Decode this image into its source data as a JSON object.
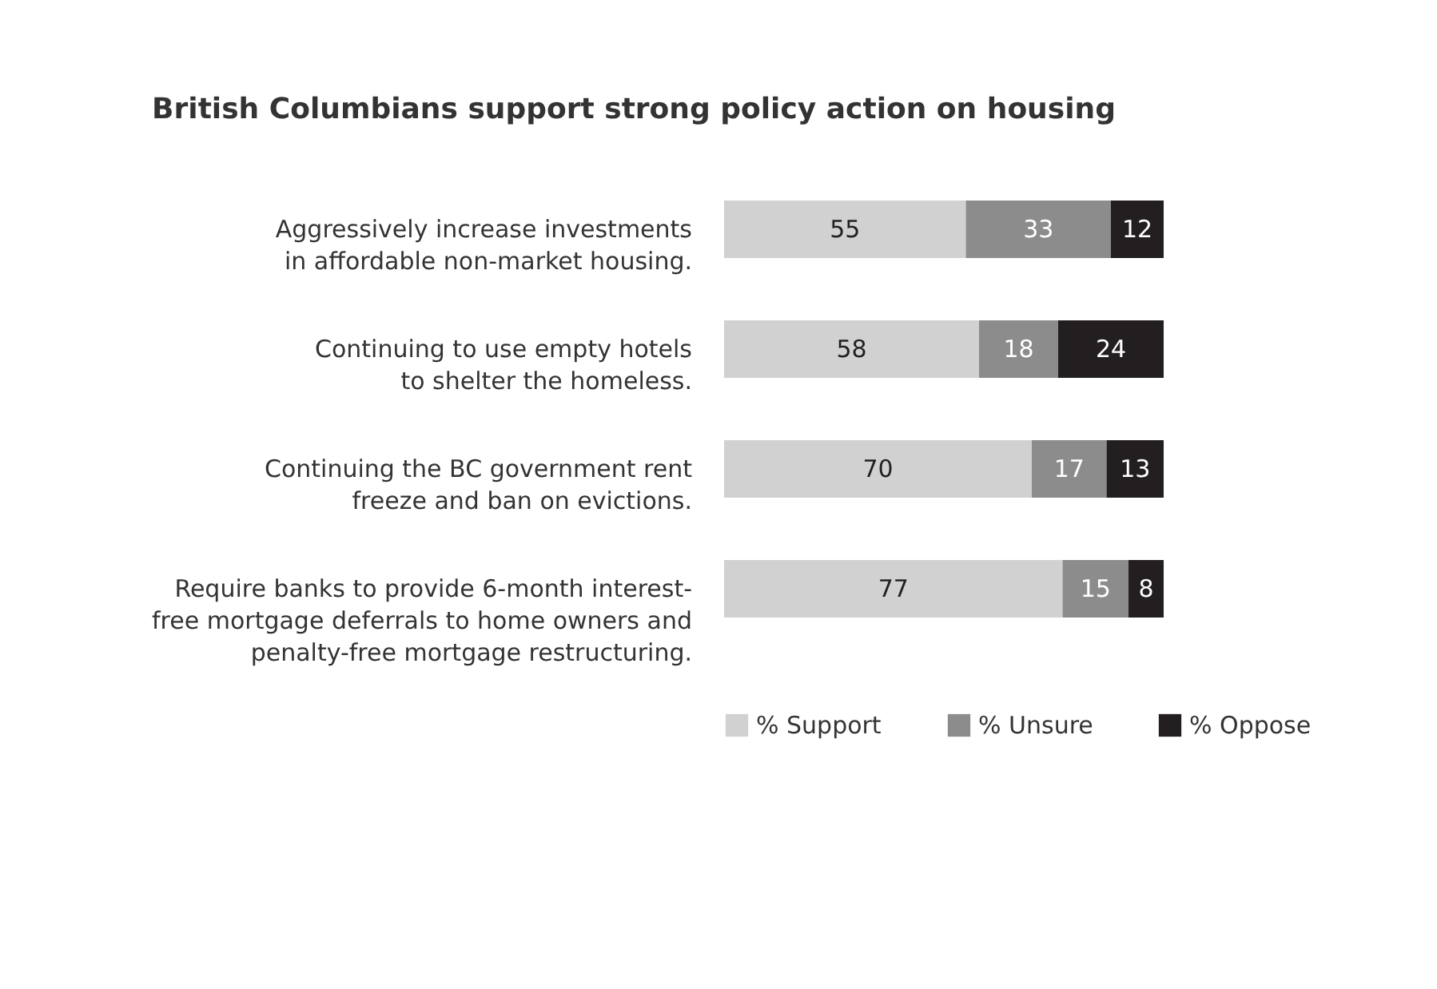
{
  "chart_data": {
    "type": "bar",
    "orientation": "horizontal",
    "stacked": true,
    "title": "British Columbians support strong policy action on housing",
    "categories": [
      "Aggressively increase investments in affordable non-market housing.",
      "Continuing to use empty hotels to shelter the homeless.",
      "Continuing the BC government rent freeze and ban on evictions.",
      "Require banks to provide 6-month interest-free mortgage deferrals to home owners and penalty-free mortgage restructuring."
    ],
    "series": [
      {
        "name": "% Support",
        "color": "#d1d1d1",
        "values": [
          55,
          58,
          70,
          77
        ]
      },
      {
        "name": "% Unsure",
        "color": "#8c8c8c",
        "values": [
          33,
          18,
          17,
          15
        ]
      },
      {
        "name": "% Oppose",
        "color": "#231f20",
        "values": [
          12,
          24,
          13,
          8
        ]
      }
    ],
    "data_labels": true,
    "legend": "bottom",
    "grid": false
  }
}
